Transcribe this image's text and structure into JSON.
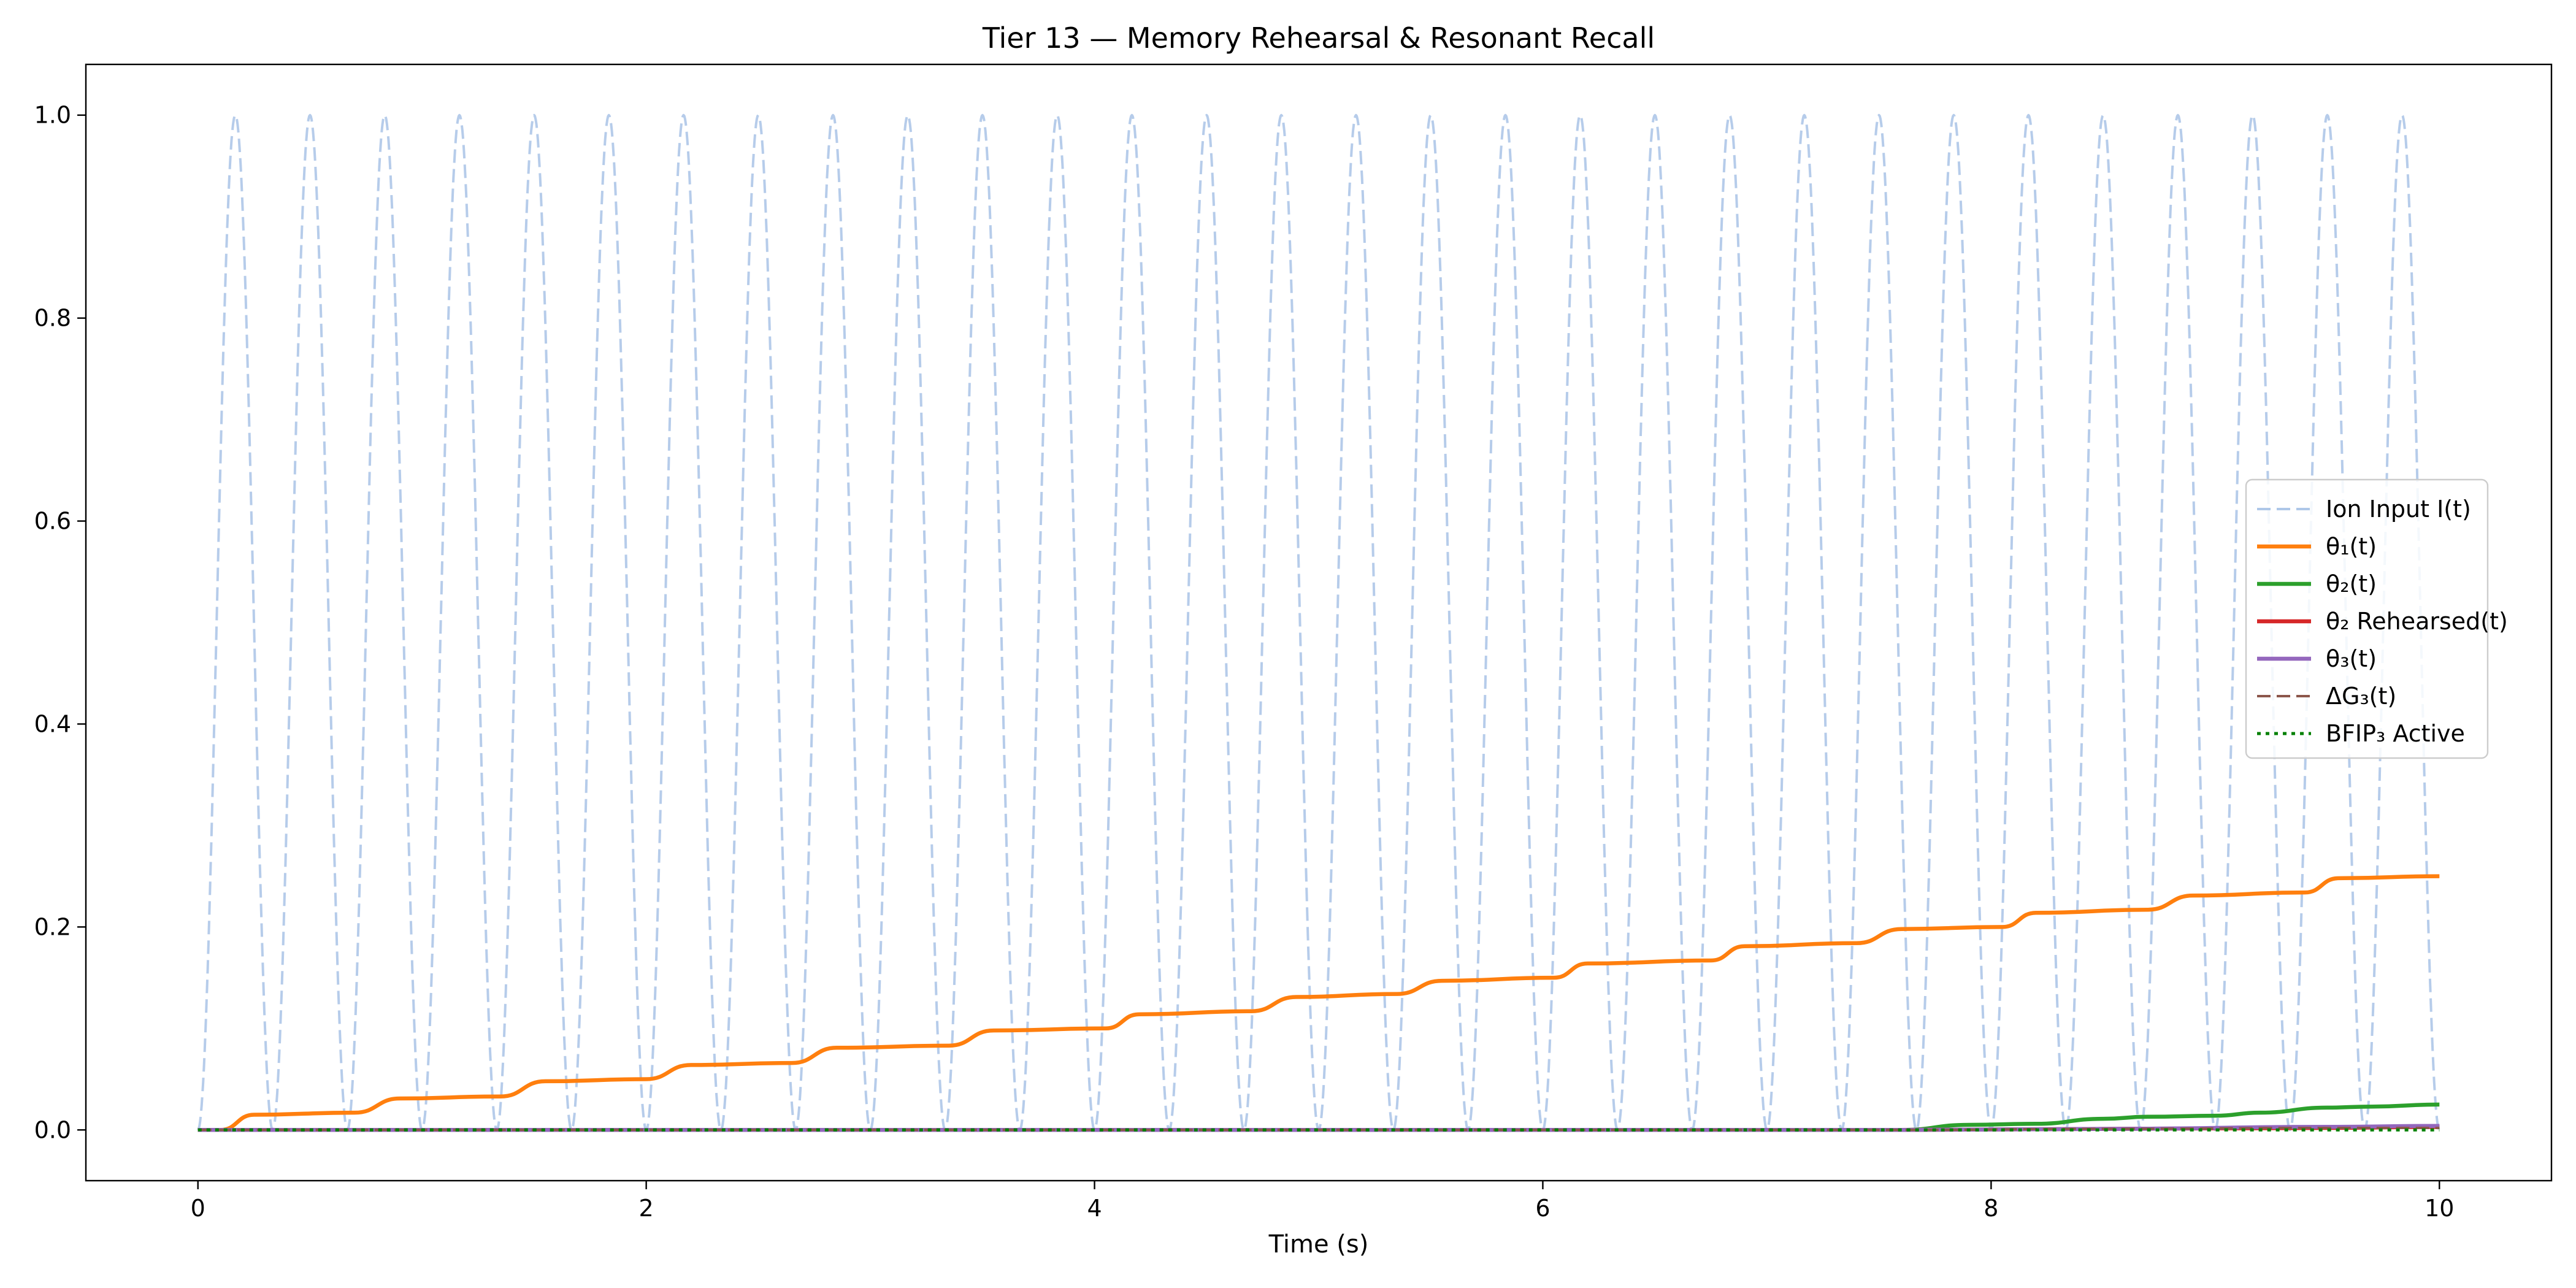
{
  "chart_data": {
    "type": "line",
    "title": "Tier 13 — Memory Rehearsal & Resonant Recall",
    "xlabel": "Time (s)",
    "ylabel": "",
    "xlim": [
      -0.5,
      10.5
    ],
    "ylim": [
      -0.05,
      1.05
    ],
    "xticks": [
      "0",
      "2",
      "4",
      "6",
      "8",
      "10"
    ],
    "yticks": [
      "0.0",
      "0.2",
      "0.4",
      "0.6",
      "0.8",
      "1.0"
    ],
    "grid": false,
    "legend_position": "center-right",
    "input_frequency_hz": 3,
    "series": [
      {
        "name": "Ion Input I(t)",
        "color": "#aec7e8",
        "dash": "dashed",
        "function": "0.5*(1 - cos(2*pi*3*t))"
      },
      {
        "name": "θ₁(t)",
        "color": "#ff7f0e",
        "dash": "solid",
        "x": [
          0,
          0.1,
          0.25,
          0.7,
          0.9,
          1.35,
          1.55,
          2.0,
          2.2,
          2.65,
          2.85,
          3.35,
          3.55,
          4.05,
          4.2,
          4.7,
          4.9,
          5.35,
          5.55,
          6.05,
          6.2,
          6.75,
          6.9,
          7.4,
          7.6,
          8.05,
          8.2,
          8.7,
          8.9,
          9.4,
          9.55,
          10.0
        ],
        "y": [
          0.0,
          0.0,
          0.015,
          0.017,
          0.031,
          0.033,
          0.048,
          0.05,
          0.064,
          0.066,
          0.081,
          0.083,
          0.098,
          0.1,
          0.114,
          0.117,
          0.131,
          0.134,
          0.147,
          0.15,
          0.164,
          0.167,
          0.181,
          0.184,
          0.198,
          0.2,
          0.214,
          0.217,
          0.231,
          0.234,
          0.248,
          0.25
        ]
      },
      {
        "name": "θ₂(t)",
        "color": "#2ca02c",
        "dash": "solid",
        "x": [
          0,
          7.6,
          7.9,
          8.2,
          8.5,
          8.7,
          9.0,
          9.2,
          9.5,
          9.7,
          10.0
        ],
        "y": [
          0.0,
          0.0,
          0.005,
          0.006,
          0.011,
          0.013,
          0.014,
          0.017,
          0.022,
          0.023,
          0.025
        ]
      },
      {
        "name": "θ₂ Rehearsed(t)",
        "color": "#d62728",
        "dash": "solid",
        "x": [
          0,
          7.6,
          8.5,
          9.5,
          10.0
        ],
        "y": [
          0.0,
          0.0,
          0.001,
          0.002,
          0.003
        ]
      },
      {
        "name": "θ₃(t)",
        "color": "#9467bd",
        "dash": "solid",
        "x": [
          0,
          7.6,
          8.5,
          9.5,
          10.0
        ],
        "y": [
          0.0,
          0.0,
          0.001,
          0.003,
          0.004
        ]
      },
      {
        "name": "ΔG₃(t)",
        "color": "#8c564b",
        "dash": "dashed",
        "x": [
          0,
          7.6,
          8.5,
          9.5,
          10.0
        ],
        "y": [
          0.0,
          0.0,
          0.001,
          0.002,
          0.002
        ]
      },
      {
        "name": "BFIP₃ Active",
        "color": "#008000",
        "dash": "dotted",
        "x": [
          0,
          10.0
        ],
        "y": [
          0.0,
          0.0
        ]
      }
    ]
  }
}
